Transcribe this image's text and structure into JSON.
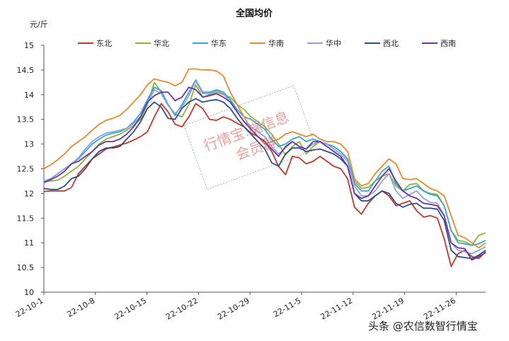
{
  "chart_data": {
    "type": "line",
    "title": "全国均价",
    "unit_label": "元/斤",
    "ylim": [
      10,
      15
    ],
    "yticks": [
      "10",
      "10.5",
      "11",
      "11.5",
      "12",
      "12.5",
      "13",
      "13.5",
      "14",
      "14.5",
      "15"
    ],
    "x_start": "2022-10-01",
    "x_end": "2022-11-30",
    "xticks": [
      "22-10-1",
      "22-10-8",
      "22-10-15",
      "22-10-22",
      "22-10-29",
      "22-11-5",
      "22-11-12",
      "22-11-19",
      "22-11-26"
    ],
    "grid": false,
    "legend_position": "top",
    "series": [
      {
        "name": "东北",
        "color": "#c0392b",
        "values": [
          12.04,
          12.05,
          12.05,
          12.05,
          12.12,
          12.4,
          12.55,
          12.7,
          12.8,
          12.9,
          12.94,
          12.98,
          13.02,
          13.08,
          13.15,
          13.25,
          13.55,
          13.82,
          13.65,
          13.4,
          13.35,
          13.55,
          13.82,
          13.72,
          13.5,
          13.48,
          13.55,
          13.5,
          13.42,
          13.35,
          13.22,
          13.15,
          13.05,
          12.85,
          12.55,
          12.38,
          12.75,
          12.72,
          12.6,
          12.65,
          12.75,
          12.65,
          12.55,
          12.5,
          12.3,
          11.72,
          11.58,
          11.8,
          11.95,
          12.05,
          11.95,
          11.75,
          11.8,
          11.85,
          11.65,
          11.52,
          11.55,
          11.5,
          11.08,
          10.52,
          10.78,
          10.85,
          10.72,
          10.68,
          10.82
        ]
      },
      {
        "name": "华北",
        "color": "#8db33a",
        "values": [
          12.24,
          12.25,
          12.27,
          12.35,
          12.45,
          12.55,
          12.7,
          12.85,
          13.0,
          13.1,
          13.15,
          13.2,
          13.28,
          13.38,
          13.5,
          13.8,
          14.25,
          14.05,
          13.8,
          13.6,
          13.55,
          13.8,
          14.2,
          13.95,
          14.0,
          14.05,
          14.0,
          13.95,
          13.8,
          13.7,
          13.55,
          13.45,
          13.35,
          13.2,
          13.0,
          12.78,
          12.95,
          13.05,
          12.8,
          12.95,
          13.05,
          13.0,
          12.95,
          12.85,
          12.7,
          12.25,
          12.1,
          12.12,
          12.25,
          12.35,
          12.4,
          12.15,
          12.05,
          12.18,
          12.2,
          12.05,
          12.0,
          11.98,
          11.75,
          11.25,
          11.05,
          11.02,
          10.95,
          11.15,
          11.2
        ]
      },
      {
        "name": "华东",
        "color": "#3aa5d6",
        "values": [
          12.25,
          12.3,
          12.4,
          12.5,
          12.6,
          12.7,
          12.85,
          13.0,
          13.1,
          13.18,
          13.22,
          13.25,
          13.32,
          13.45,
          13.62,
          13.9,
          14.15,
          14.08,
          13.8,
          13.58,
          13.8,
          14.05,
          14.3,
          14.05,
          14.05,
          14.1,
          14.05,
          13.9,
          13.7,
          13.55,
          13.5,
          13.4,
          13.3,
          13.1,
          12.95,
          13.0,
          13.1,
          13.15,
          13.05,
          13.1,
          13.05,
          13.0,
          12.95,
          12.85,
          12.7,
          12.2,
          12.05,
          12.05,
          12.25,
          12.45,
          12.55,
          12.2,
          12.05,
          12.1,
          12.15,
          12.05,
          11.98,
          11.95,
          11.75,
          11.25,
          11.0,
          10.98,
          10.95,
          10.98,
          11.05
        ]
      },
      {
        "name": "华南",
        "color": "#e48a30",
        "values": [
          12.5,
          12.58,
          12.68,
          12.8,
          12.95,
          13.05,
          13.15,
          13.28,
          13.4,
          13.48,
          13.52,
          13.58,
          13.7,
          13.85,
          14.0,
          14.2,
          14.32,
          14.28,
          14.25,
          14.18,
          14.25,
          14.52,
          14.52,
          14.5,
          14.5,
          14.48,
          14.38,
          14.05,
          13.8,
          13.55,
          13.3,
          13.15,
          13.0,
          13.05,
          13.1,
          13.2,
          13.25,
          13.2,
          13.15,
          13.2,
          13.1,
          13.05,
          13.05,
          13.0,
          12.85,
          12.3,
          12.15,
          12.2,
          12.4,
          12.55,
          12.7,
          12.6,
          12.3,
          12.28,
          12.3,
          12.2,
          12.1,
          12.05,
          11.95,
          11.55,
          11.15,
          11.1,
          11.0,
          10.9,
          11.0
        ]
      },
      {
        "name": "华中",
        "color": "#8ea3d6",
        "values": [
          12.25,
          12.3,
          12.4,
          12.5,
          12.6,
          12.72,
          12.9,
          13.05,
          13.15,
          13.22,
          13.25,
          13.28,
          13.32,
          13.42,
          13.55,
          13.82,
          14.1,
          14.02,
          13.78,
          13.62,
          13.75,
          13.98,
          14.28,
          14.02,
          14.02,
          14.08,
          14.02,
          13.85,
          13.65,
          13.45,
          13.35,
          13.25,
          13.15,
          12.95,
          12.8,
          12.92,
          13.05,
          12.95,
          12.9,
          13.0,
          13.05,
          13.0,
          12.9,
          12.8,
          12.65,
          12.15,
          11.95,
          11.95,
          12.05,
          12.25,
          12.4,
          12.05,
          11.9,
          11.98,
          12.05,
          11.9,
          11.82,
          11.8,
          11.55,
          11.0,
          10.85,
          10.82,
          10.78,
          10.85,
          10.92
        ]
      },
      {
        "name": "西北",
        "color": "#2c4f8c",
        "values": [
          12.1,
          12.08,
          12.08,
          12.15,
          12.3,
          12.35,
          12.5,
          12.7,
          12.85,
          12.92,
          12.92,
          12.95,
          13.1,
          13.25,
          13.45,
          13.72,
          13.85,
          13.75,
          13.52,
          13.5,
          13.72,
          13.85,
          13.92,
          13.85,
          13.88,
          13.9,
          13.85,
          13.72,
          13.52,
          13.35,
          13.2,
          13.05,
          12.9,
          12.62,
          12.55,
          12.8,
          12.92,
          12.92,
          12.85,
          12.88,
          12.9,
          12.85,
          12.8,
          12.7,
          12.55,
          12.0,
          11.85,
          11.85,
          11.95,
          12.05,
          12.0,
          11.8,
          11.72,
          11.78,
          11.8,
          11.7,
          11.7,
          11.68,
          11.45,
          10.85,
          10.72,
          10.7,
          10.68,
          10.75,
          10.85
        ]
      },
      {
        "name": "西南",
        "color": "#6a35a5",
        "values": [
          12.22,
          12.28,
          12.35,
          12.45,
          12.6,
          12.65,
          12.75,
          12.85,
          12.98,
          13.05,
          13.05,
          13.1,
          13.2,
          13.35,
          13.55,
          13.85,
          13.98,
          14.05,
          14.05,
          13.88,
          13.95,
          14.15,
          14.1,
          13.95,
          13.98,
          14.02,
          13.95,
          13.85,
          13.65,
          13.45,
          13.3,
          13.15,
          13.05,
          12.9,
          12.75,
          12.95,
          13.05,
          12.95,
          12.9,
          13.05,
          13.05,
          12.95,
          12.85,
          12.75,
          12.55,
          12.0,
          11.9,
          11.95,
          12.15,
          12.35,
          12.5,
          12.25,
          12.05,
          11.95,
          11.9,
          11.8,
          11.78,
          11.75,
          11.55,
          11.0,
          10.9,
          10.88,
          10.65,
          10.72,
          10.8
        ]
      }
    ]
  },
  "watermark": {
    "line1": "行情宝.端信息",
    "line2": "会员群"
  },
  "credit": "头条 @农信数智行情宝"
}
